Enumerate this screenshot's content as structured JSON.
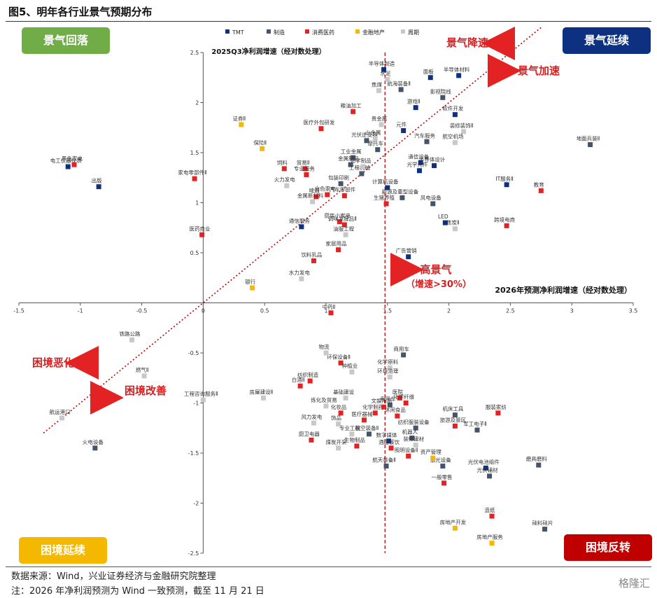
{
  "figure": {
    "title": "图5、明年各行业景气预期分布",
    "source": "数据来源：Wind，兴业证券经济与金融研究院整理",
    "note": "注：2026 年净利润预测为 Wind 一致预测，截至 11 月 21 日",
    "brand": "格隆汇"
  },
  "quadrants": {
    "top_left": {
      "label": "景气回落",
      "color": "#70ad47"
    },
    "top_right": {
      "label": "景气延续",
      "color": "#0d3180"
    },
    "bottom_left": {
      "label": "困境延续",
      "color": "#f5b800"
    },
    "bottom_right": {
      "label": "困境反转",
      "color": "#c00000"
    }
  },
  "annotations": {
    "slow": "景气降速",
    "accel": "景气加速",
    "high": "高景气",
    "high_sub": "（增速>30%）",
    "worsen": "困境恶化",
    "improve": "困境改善"
  },
  "chart_data": {
    "type": "scatter",
    "xlabel": "2026年预测净利润增速（经对数处理）",
    "ylabel": "2025Q3净利润增速（经对数处理）",
    "xlim": [
      -1.5,
      3.5
    ],
    "ylim": [
      -2.5,
      2.5
    ],
    "xticks": [
      -1.5,
      -1,
      -0.5,
      0,
      0.5,
      1,
      1.5,
      2,
      2.5,
      3,
      3.5
    ],
    "yticks": [
      -2.5,
      -2,
      -1.5,
      -1,
      -0.5,
      0.5,
      1,
      1.5,
      2,
      2.5
    ],
    "threshold_x": 1.48,
    "diagonal": [
      [
        -1.3,
        -1.3
      ],
      [
        2.75,
        2.75
      ]
    ],
    "legend_position": "top",
    "series": [
      {
        "name": "TMT",
        "color": "#0d3180",
        "points": [
          {
            "label": "半导体制造",
            "x": 1.47,
            "y": 2.33
          },
          {
            "label": "面板",
            "x": 1.85,
            "y": 2.25
          },
          {
            "label": "半导体材料",
            "x": 2.08,
            "y": 2.27
          },
          {
            "label": "游戏Ⅱ",
            "x": 1.73,
            "y": 1.95
          },
          {
            "label": "元件",
            "x": 1.63,
            "y": 1.72
          },
          {
            "label": "软件开发",
            "x": 2.05,
            "y": 1.88
          },
          {
            "label": "半导体设计",
            "x": 1.88,
            "y": 1.37
          },
          {
            "label": "通信设备",
            "x": 1.77,
            "y": 1.4
          },
          {
            "label": "光学元件",
            "x": 1.76,
            "y": 1.32
          },
          {
            "label": "计算机设备",
            "x": 1.5,
            "y": 1.15
          },
          {
            "label": "IT服务Ⅱ",
            "x": 2.47,
            "y": 1.18
          },
          {
            "label": "LED",
            "x": 1.97,
            "y": 0.8
          },
          {
            "label": "广告营销",
            "x": 1.67,
            "y": 0.46
          },
          {
            "label": "通信服务",
            "x": 0.8,
            "y": 0.76
          },
          {
            "label": "电工仪器仪表",
            "x": -1.1,
            "y": 1.36
          },
          {
            "label": "出版",
            "x": -0.85,
            "y": 1.16
          },
          {
            "label": "数字媒体",
            "x": 1.51,
            "y": -1.38
          },
          {
            "label": "光伏电池组件",
            "x": 2.3,
            "y": -1.65
          }
        ]
      },
      {
        "name": "制造",
        "color": "#44546a",
        "points": [
          {
            "label": "航海装备Ⅱ",
            "x": 1.61,
            "y": 2.13
          },
          {
            "label": "影视院线",
            "x": 1.95,
            "y": 2.05
          },
          {
            "label": "汽车服务",
            "x": 1.82,
            "y": 1.61
          },
          {
            "label": "光伏逆变器",
            "x": 1.33,
            "y": 1.62
          },
          {
            "label": "摩托车",
            "x": 1.42,
            "y": 1.53
          },
          {
            "label": "工业金属",
            "x": 1.22,
            "y": 1.45
          },
          {
            "label": "金属制品",
            "x": 1.2,
            "y": 1.38
          },
          {
            "label": "工程机械",
            "x": 1.29,
            "y": 1.29
          },
          {
            "label": "能源及重型设备",
            "x": 1.62,
            "y": 1.05
          },
          {
            "label": "风电设备",
            "x": 1.87,
            "y": 0.99
          },
          {
            "label": "包装印刷",
            "x": 1.12,
            "y": 1.19
          },
          {
            "label": "乘用车",
            "x": 1.52,
            "y": -1.02
          },
          {
            "label": "商用车",
            "x": 1.63,
            "y": -0.52
          },
          {
            "label": "机床工具",
            "x": 2.05,
            "y": -1.12
          },
          {
            "label": "军工电子Ⅱ",
            "x": 2.23,
            "y": -1.27
          },
          {
            "label": "纺织服装设备",
            "x": 1.73,
            "y": -1.25
          },
          {
            "label": "机器人",
            "x": 1.7,
            "y": -1.35
          },
          {
            "label": "航空装备Ⅱ",
            "x": 1.35,
            "y": -1.31
          },
          {
            "label": "航天装备Ⅱ",
            "x": 1.49,
            "y": -1.63
          },
          {
            "label": "激光设备",
            "x": 1.95,
            "y": -1.63
          },
          {
            "label": "光伏辅材",
            "x": 2.33,
            "y": -1.73
          },
          {
            "label": "磨具磨料",
            "x": 2.73,
            "y": -1.62
          },
          {
            "label": "硅料硅片",
            "x": 2.78,
            "y": -2.26
          },
          {
            "label": "火电设备",
            "x": -0.88,
            "y": -1.45
          },
          {
            "label": "地面兵装Ⅱ",
            "x": 3.15,
            "y": 1.58
          }
        ]
      },
      {
        "name": "消费医药",
        "color": "#e32323",
        "points": [
          {
            "label": "黑色家电",
            "x": -1.05,
            "y": 1.38
          },
          {
            "label": "家电零部件Ⅱ",
            "x": -0.07,
            "y": 1.24
          },
          {
            "label": "医药商业",
            "x": -0.01,
            "y": 0.68
          },
          {
            "label": "粮油加工",
            "x": 1.22,
            "y": 1.91
          },
          {
            "label": "医疗外包研发",
            "x": 0.96,
            "y": 1.74
          },
          {
            "label": "贸易Ⅱ",
            "x": 0.83,
            "y": 1.34
          },
          {
            "label": "饲料",
            "x": 0.66,
            "y": 1.34
          },
          {
            "label": "专业服务",
            "x": 0.84,
            "y": 1.28
          },
          {
            "label": "啤酒",
            "x": 0.92,
            "y": 1.06
          },
          {
            "label": "白色家电",
            "x": 1.01,
            "y": 1.08
          },
          {
            "label": "汽车零部件",
            "x": 1.15,
            "y": 1.07
          },
          {
            "label": "厨房小家电",
            "x": 1.11,
            "y": 0.81
          },
          {
            "label": "调味发酵品Ⅱ",
            "x": 1.15,
            "y": 0.78
          },
          {
            "label": "生猪养殖",
            "x": 1.49,
            "y": 0.99
          },
          {
            "label": "家居用品",
            "x": 1.1,
            "y": 0.53
          },
          {
            "label": "饮料乳品",
            "x": 0.9,
            "y": 0.42
          },
          {
            "label": "教育",
            "x": 2.75,
            "y": 1.12
          },
          {
            "label": "跨境电商",
            "x": 2.47,
            "y": 0.77
          },
          {
            "label": "中药Ⅱ",
            "x": 1.04,
            "y": -0.1
          },
          {
            "label": "环保设备Ⅱ",
            "x": 1.12,
            "y": -0.6
          },
          {
            "label": "纺织制造",
            "x": 0.87,
            "y": -0.78
          },
          {
            "label": "白酒Ⅱ",
            "x": 0.79,
            "y": -0.83
          },
          {
            "label": "化学制药",
            "x": 1.4,
            "y": -1.1
          },
          {
            "label": "化妆品",
            "x": 1.12,
            "y": -1.1
          },
          {
            "label": "医疗器械",
            "x": 1.31,
            "y": -1.17
          },
          {
            "label": "医院",
            "x": 1.6,
            "y": -0.95
          },
          {
            "label": "化学纤维",
            "x": 1.65,
            "y": -1.0
          },
          {
            "label": "休闲食品",
            "x": 1.58,
            "y": -1.13
          },
          {
            "label": "旅游及景区",
            "x": 2.05,
            "y": -1.23
          },
          {
            "label": "服装家纺",
            "x": 2.4,
            "y": -1.1
          },
          {
            "label": "厨卫电器",
            "x": 0.88,
            "y": -1.37
          },
          {
            "label": "酒店餐饮",
            "x": 1.53,
            "y": -1.45
          },
          {
            "label": "照明设备Ⅱ",
            "x": 1.67,
            "y": -1.53
          },
          {
            "label": "一般零售",
            "x": 1.96,
            "y": -1.8
          },
          {
            "label": "造纸",
            "x": 2.35,
            "y": -2.13
          },
          {
            "label": "生物制品",
            "x": 1.25,
            "y": -1.43
          },
          {
            "label": "文娱用品",
            "x": 1.47,
            "y": -1.04
          }
        ]
      },
      {
        "name": "金融地产",
        "color": "#f5b800",
        "points": [
          {
            "label": "证券Ⅱ",
            "x": 0.31,
            "y": 1.78
          },
          {
            "label": "保险Ⅱ",
            "x": 0.48,
            "y": 1.54
          },
          {
            "label": "银行",
            "x": 0.4,
            "y": 0.15
          },
          {
            "label": "资产管理",
            "x": 1.87,
            "y": -1.55
          },
          {
            "label": "房地产开发",
            "x": 2.05,
            "y": -2.25
          },
          {
            "label": "房地产服务",
            "x": 2.35,
            "y": -2.4
          }
        ]
      },
      {
        "name": "周期",
        "color": "#c8c8c8",
        "points": [
          {
            "label": "水泥",
            "x": 1.5,
            "y": 2.23
          },
          {
            "label": "焦煤",
            "x": 1.43,
            "y": 2.12
          },
          {
            "label": "装修装饰Ⅱ",
            "x": 2.12,
            "y": 1.71
          },
          {
            "label": "航空机场",
            "x": 2.05,
            "y": 1.6
          },
          {
            "label": "贵金属",
            "x": 1.45,
            "y": 1.78
          },
          {
            "label": "小金属",
            "x": 1.4,
            "y": 1.64
          },
          {
            "label": "化学制品",
            "x": 1.3,
            "y": 1.36
          },
          {
            "label": "火力发电",
            "x": 0.68,
            "y": 1.17
          },
          {
            "label": "金属新材料",
            "x": 0.89,
            "y": 1.01
          },
          {
            "label": "油服工程",
            "x": 1.16,
            "y": 0.68
          },
          {
            "label": "水力发电",
            "x": 0.8,
            "y": 0.24
          },
          {
            "label": "焦炭Ⅱ",
            "x": 2.05,
            "y": 0.74
          },
          {
            "label": "铁路公路",
            "x": -0.58,
            "y": -0.37
          },
          {
            "label": "燃气Ⅱ",
            "x": -0.48,
            "y": -0.73
          },
          {
            "label": "航运港口",
            "x": -1.15,
            "y": -1.15
          },
          {
            "label": "工程咨询服务Ⅱ",
            "x": 0.0,
            "y": -0.97
          },
          {
            "label": "房屋建设Ⅱ",
            "x": 0.49,
            "y": -0.95
          },
          {
            "label": "物流",
            "x": 1.0,
            "y": -0.5
          },
          {
            "label": "化学原料",
            "x": 1.52,
            "y": -0.65
          },
          {
            "label": "环境治理",
            "x": 1.52,
            "y": -0.74
          },
          {
            "label": "基础建设",
            "x": 1.16,
            "y": -0.95
          },
          {
            "label": "炼化及贸易",
            "x": 1.0,
            "y": -1.03
          },
          {
            "label": "风力发电",
            "x": 0.9,
            "y": -1.2
          },
          {
            "label": "饰品",
            "x": 1.1,
            "y": -1.21
          },
          {
            "label": "专业工程",
            "x": 1.21,
            "y": -1.31
          },
          {
            "label": "煤炭开采",
            "x": 1.1,
            "y": -1.45
          },
          {
            "label": "种植业",
            "x": 1.21,
            "y": -0.69
          },
          {
            "label": "装修建材",
            "x": 1.73,
            "y": -1.42
          }
        ]
      }
    ]
  }
}
